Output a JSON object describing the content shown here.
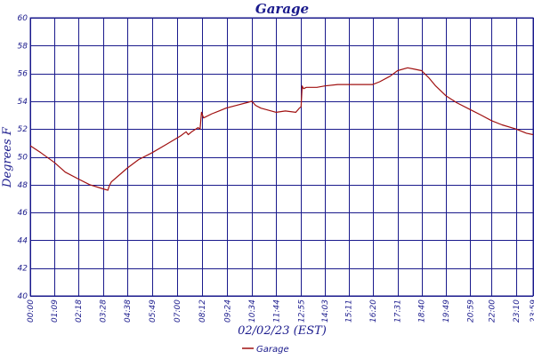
{
  "chart_data": {
    "type": "line",
    "title": "Garage",
    "xlabel": "02/02/23 (EST)",
    "ylabel": "Degrees F",
    "ylim": [
      40,
      60
    ],
    "yticks": [
      40,
      42,
      44,
      46,
      48,
      50,
      52,
      54,
      56,
      58,
      60
    ],
    "xlim": [
      0,
      1439
    ],
    "x_unit": "minutes since 00:00",
    "xtick_labels": [
      "00:00",
      "01:09",
      "02:18",
      "03:28",
      "04:38",
      "05:49",
      "07:00",
      "08:12",
      "09:24",
      "10:34",
      "11:44",
      "12:55",
      "14:03",
      "15:11",
      "16:20",
      "17:31",
      "18:40",
      "19:49",
      "20:59",
      "22:00",
      "23:10",
      "23:59"
    ],
    "xtick_minutes": [
      0,
      69,
      138,
      208,
      278,
      349,
      420,
      492,
      564,
      634,
      704,
      775,
      843,
      911,
      980,
      1051,
      1120,
      1189,
      1259,
      1320,
      1390,
      1439
    ],
    "grid": true,
    "legend_position": "bottom-center",
    "series_color": "#a01010",
    "series": [
      {
        "name": "Garage",
        "x": [
          0,
          30,
          69,
          100,
          138,
          170,
          208,
          222,
          226,
          232,
          278,
          310,
          349,
          390,
          430,
          446,
          452,
          462,
          480,
          486,
          490,
          496,
          520,
          540,
          560,
          590,
          620,
          634,
          645,
          660,
          704,
          730,
          760,
          770,
          775,
          778,
          782,
          790,
          800,
          820,
          843,
          880,
          911,
          950,
          980,
          1000,
          1030,
          1051,
          1080,
          1100,
          1120,
          1140,
          1160,
          1189,
          1220,
          1259,
          1290,
          1320,
          1350,
          1390,
          1420,
          1439
        ],
        "y": [
          50.8,
          50.3,
          49.6,
          48.9,
          48.4,
          48.0,
          47.7,
          47.6,
          47.9,
          48.2,
          49.2,
          49.8,
          50.3,
          50.9,
          51.5,
          51.8,
          51.6,
          51.8,
          52.1,
          52.0,
          53.2,
          52.8,
          53.1,
          53.3,
          53.5,
          53.7,
          53.9,
          54.0,
          53.7,
          53.5,
          53.2,
          53.3,
          53.2,
          53.5,
          53.6,
          55.1,
          54.9,
          55.0,
          55.0,
          55.0,
          55.1,
          55.2,
          55.2,
          55.2,
          55.2,
          55.4,
          55.8,
          56.2,
          56.4,
          56.3,
          56.2,
          55.7,
          55.1,
          54.4,
          53.9,
          53.4,
          53.0,
          52.6,
          52.3,
          52.0,
          51.7,
          51.6
        ]
      }
    ]
  }
}
